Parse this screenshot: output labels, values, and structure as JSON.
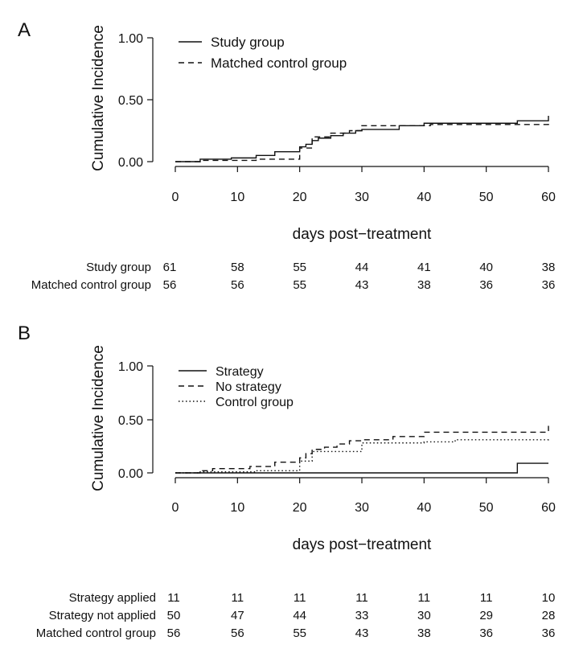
{
  "chart_data": [
    {
      "panel_letter": "A",
      "type": "line",
      "xlabel": "days post−treatment",
      "ylabel": "Cumulative Incidence",
      "xlim": [
        0,
        60
      ],
      "ylim": [
        0,
        1
      ],
      "x_ticks": [
        "0",
        "10",
        "20",
        "30",
        "40",
        "50",
        "60"
      ],
      "y_ticks": [
        "0.00",
        "0.50",
        "1.00"
      ],
      "grid": false,
      "legend_position": "top-left",
      "series": [
        {
          "name": "Study group",
          "line_style": "solid",
          "x": [
            0,
            4,
            9,
            13,
            16,
            20,
            21,
            22,
            23,
            25,
            27,
            29,
            30,
            36,
            40,
            55,
            60
          ],
          "y": [
            0.0,
            0.02,
            0.03,
            0.05,
            0.08,
            0.12,
            0.14,
            0.17,
            0.19,
            0.21,
            0.23,
            0.25,
            0.26,
            0.29,
            0.31,
            0.33,
            0.37
          ]
        },
        {
          "name": "Matched control group",
          "line_style": "dashed",
          "x": [
            0,
            4,
            13,
            20,
            22,
            25,
            28,
            30,
            35,
            41,
            60
          ],
          "y": [
            0.0,
            0.01,
            0.02,
            0.11,
            0.2,
            0.23,
            0.25,
            0.29,
            0.29,
            0.3,
            0.31
          ]
        }
      ],
      "at_risk_times": [
        0,
        10,
        20,
        30,
        40,
        50,
        60
      ],
      "at_risk": [
        {
          "label": "Study group",
          "counts": [
            "61",
            "58",
            "55",
            "44",
            "41",
            "40",
            "38"
          ]
        },
        {
          "label": "Matched control group",
          "counts": [
            "56",
            "56",
            "55",
            "43",
            "38",
            "36",
            "36"
          ]
        }
      ]
    },
    {
      "panel_letter": "B",
      "type": "line",
      "xlabel": "days post−treatment",
      "ylabel": "Cumulative Incidence",
      "xlim": [
        0,
        60
      ],
      "ylim": [
        0,
        1
      ],
      "x_ticks": [
        "0",
        "10",
        "20",
        "30",
        "40",
        "50",
        "60"
      ],
      "y_ticks": [
        "0.00",
        "0.50",
        "1.00"
      ],
      "grid": false,
      "legend_position": "top-left",
      "series": [
        {
          "name": "Strategy",
          "line_style": "solid",
          "x": [
            0,
            55,
            60
          ],
          "y": [
            0.0,
            0.09,
            0.09
          ]
        },
        {
          "name": "No strategy",
          "line_style": "dashed",
          "x": [
            0,
            4,
            6,
            12,
            16,
            20,
            21,
            22,
            24,
            26,
            28,
            30,
            35,
            40,
            60
          ],
          "y": [
            0.0,
            0.02,
            0.04,
            0.06,
            0.1,
            0.14,
            0.18,
            0.22,
            0.24,
            0.27,
            0.3,
            0.31,
            0.34,
            0.38,
            0.44
          ]
        },
        {
          "name": "Control group",
          "line_style": "dotted",
          "x": [
            0,
            4,
            13,
            20,
            22,
            30,
            40,
            45,
            60
          ],
          "y": [
            0.0,
            0.01,
            0.02,
            0.11,
            0.2,
            0.28,
            0.29,
            0.31,
            0.33
          ]
        }
      ],
      "at_risk_times": [
        0,
        10,
        20,
        30,
        40,
        50,
        60
      ],
      "at_risk": [
        {
          "label": "Strategy applied",
          "counts": [
            "11",
            "11",
            "11",
            "11",
            "11",
            "11",
            "10"
          ]
        },
        {
          "label": "Strategy not applied",
          "counts": [
            "50",
            "47",
            "44",
            "33",
            "30",
            "29",
            "28"
          ]
        },
        {
          "label": "Matched control group",
          "counts": [
            "56",
            "56",
            "55",
            "43",
            "38",
            "36",
            "36"
          ]
        }
      ]
    }
  ]
}
